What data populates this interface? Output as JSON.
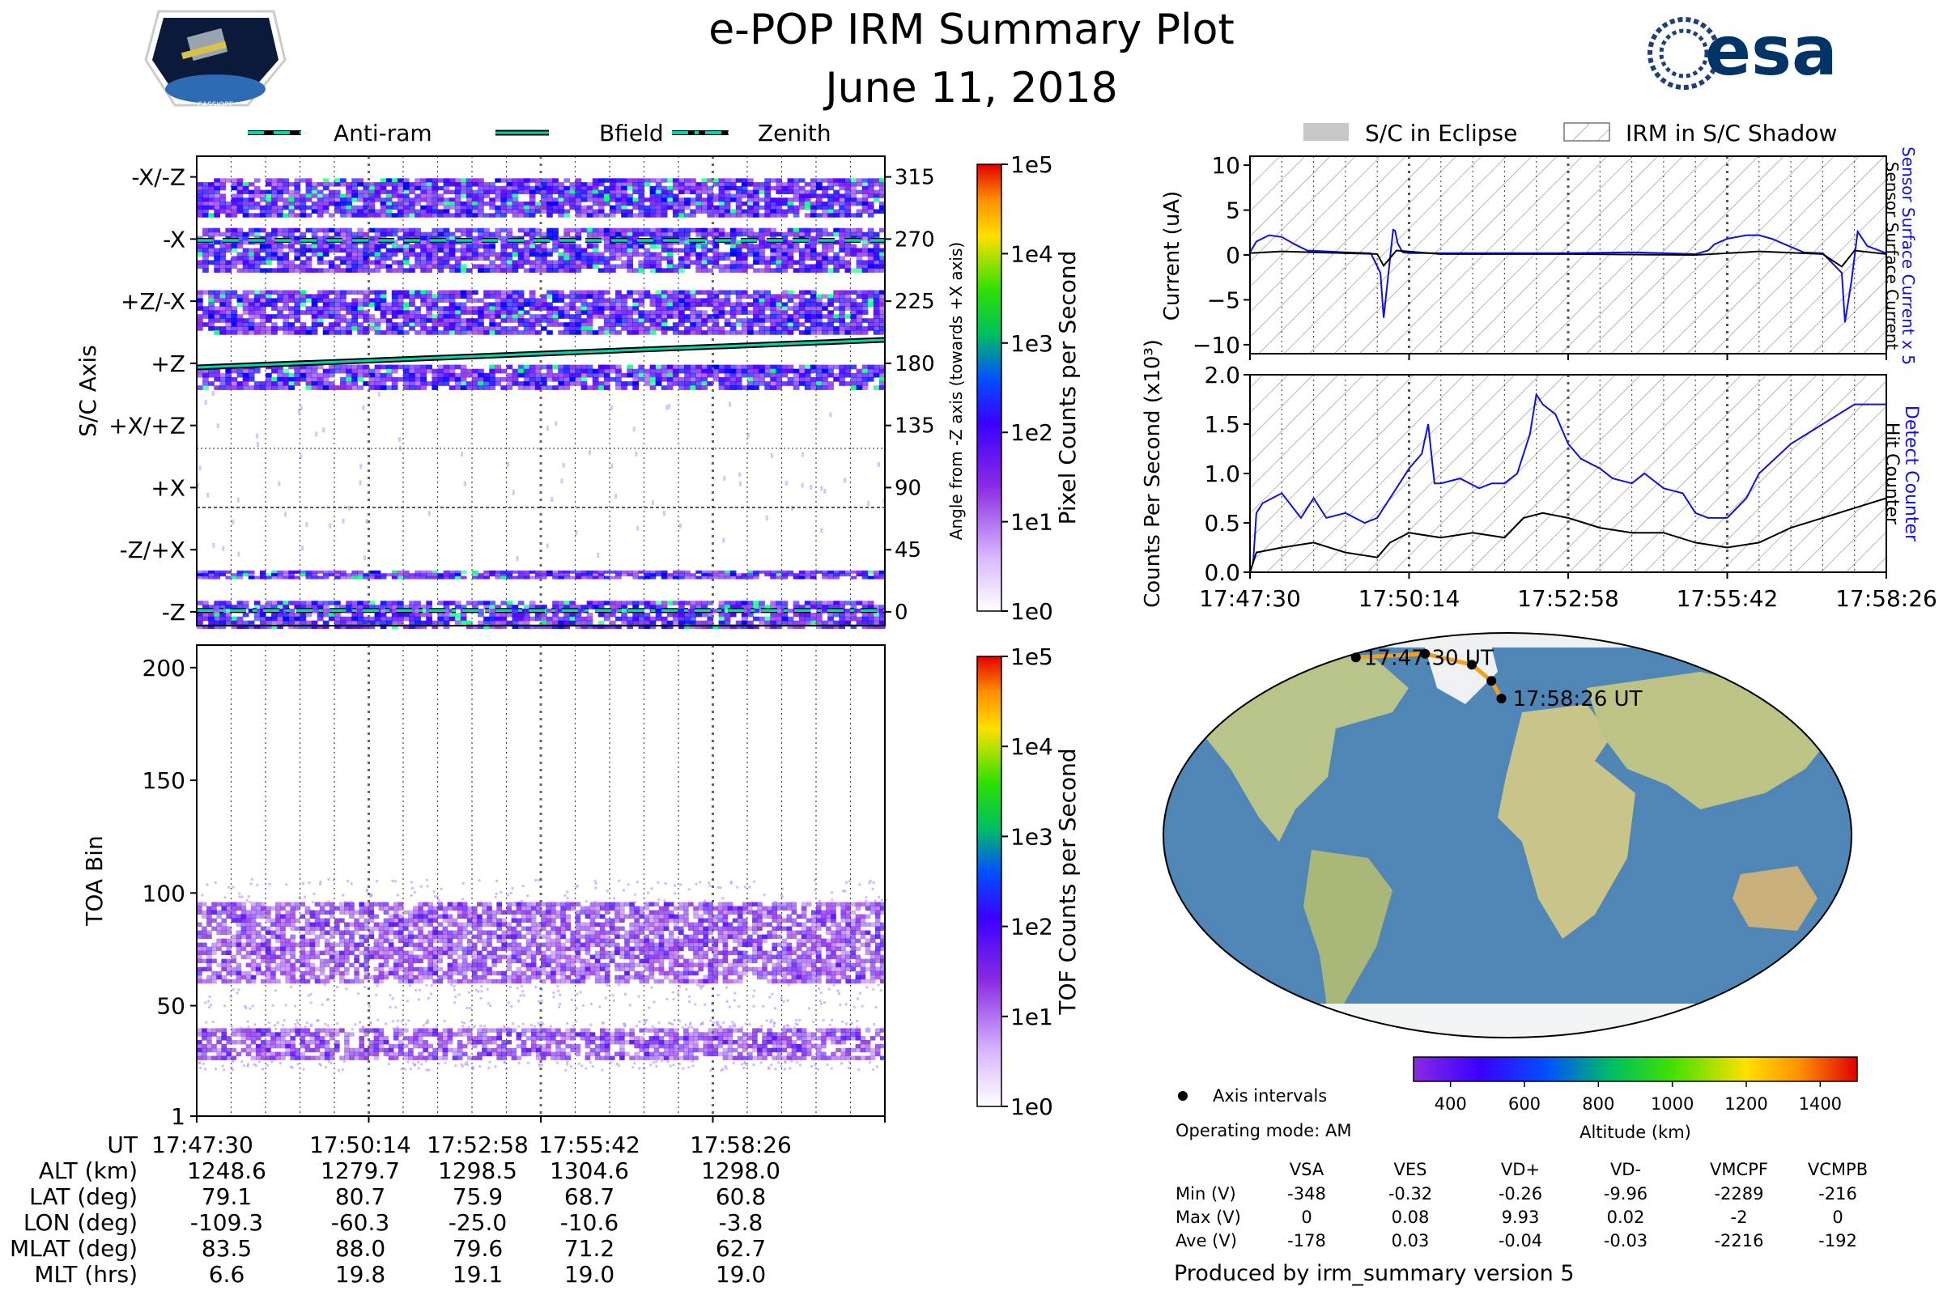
{
  "header": {
    "title": "e-POP IRM Summary Plot",
    "date": "June 11, 2018",
    "mission_logo_text": "CASSIOPE",
    "agency_logo_text": "esa"
  },
  "colors": {
    "bfield_line": "#00d5b0",
    "detect_blue": "#1010e0",
    "orbit_track": "#f2a01c",
    "ocean": "#4f86b5",
    "land": "#b9c48a"
  },
  "scale_colors": [
    "#8a2be2",
    "#4a00ff",
    "#0000ff",
    "#0080ff",
    "#00ff80",
    "#40ff00",
    "#ffff00",
    "#ffa500",
    "#ff2000"
  ],
  "legend_top": [
    {
      "label": "Anti-ram",
      "style": "dashed"
    },
    {
      "label": "Bfield",
      "style": "solid"
    },
    {
      "label": "Zenith",
      "style": "dashdot"
    }
  ],
  "legend_right": [
    {
      "label": "S/C in Eclipse",
      "style": "gray"
    },
    {
      "label": "IRM in S/C Shadow",
      "style": "hatch"
    }
  ],
  "time_ticks": [
    "17:47:30",
    "17:50:14",
    "17:52:58",
    "17:55:42",
    "17:58:26"
  ],
  "chart_data": [
    {
      "id": "pixel_counts",
      "type": "heatmap",
      "ylabel": "S/C Axis",
      "y_right_label": "Angle from -Z axis (towards +X axis)",
      "ylim": [
        -10,
        330
      ],
      "left_ticks": [
        {
          "label": "-X/-Z",
          "value": 315
        },
        {
          "label": "-X",
          "value": 270
        },
        {
          "label": "+Z/-X",
          "value": 225
        },
        {
          "label": "+Z",
          "value": 180
        },
        {
          "label": "+X/+Z",
          "value": 135
        },
        {
          "label": "+X",
          "value": 90
        },
        {
          "label": "-Z/+X",
          "value": 45
        },
        {
          "label": "-Z",
          "value": 0
        }
      ],
      "right_ticks": [
        "315",
        "270",
        "225",
        "180",
        "135",
        "90",
        "45",
        "0"
      ],
      "right_tick_values": [
        315,
        270,
        225,
        180,
        135,
        90,
        45,
        0
      ],
      "bands": [
        {
          "center": 300,
          "half_width": 14
        },
        {
          "center": 262,
          "half_width": 16
        },
        {
          "center": 217,
          "half_width": 16
        },
        {
          "center": 170,
          "half_width": 9
        },
        {
          "center": 27,
          "half_width": 3
        },
        {
          "center": -2,
          "half_width": 10
        }
      ],
      "bfield_line": {
        "start": 177,
        "end": 197
      },
      "antiram_angle": 269,
      "zenith_angle": 1,
      "colorbar_label": "Pixel Counts per Second",
      "colorbar_ticks": [
        "1e5",
        "1e4",
        "1e3",
        "1e2",
        "1e1",
        "1e0"
      ]
    },
    {
      "id": "toa",
      "type": "heatmap",
      "ylabel": "TOA Bin",
      "ylim": [
        1,
        210
      ],
      "y_ticks": [
        "200",
        "150",
        "100",
        "50",
        "1"
      ],
      "y_tick_values": [
        200,
        150,
        100,
        50,
        1
      ],
      "bands": [
        {
          "center": 78,
          "half_width": 18
        },
        {
          "center": 33,
          "half_width": 7
        }
      ],
      "colorbar_label": "TOF Counts per Second",
      "colorbar_ticks": [
        "1e5",
        "1e4",
        "1e3",
        "1e2",
        "1e1",
        "1e0"
      ]
    },
    {
      "id": "current",
      "type": "line",
      "ylabel": "Current (uA)",
      "ylim": [
        -11,
        11
      ],
      "y_ticks": [
        "10",
        "5",
        "0",
        "−5",
        "−10"
      ],
      "y_tick_values": [
        10,
        5,
        0,
        -5,
        -10
      ],
      "right_label_1": "Sensor Surface Current x 5",
      "right_label_2": "Sensor Surface Current",
      "series": [
        {
          "name": "Sensor Surface Current x 5",
          "color": "#1010e0",
          "x": [
            0,
            0.01,
            0.03,
            0.05,
            0.07,
            0.09,
            0.15,
            0.19,
            0.205,
            0.21,
            0.225,
            0.228,
            0.232,
            0.24,
            0.25,
            0.3,
            0.4,
            0.5,
            0.6,
            0.7,
            0.72,
            0.73,
            0.75,
            0.78,
            0.8,
            0.82,
            0.87,
            0.9,
            0.93,
            0.935,
            0.945,
            0.955,
            0.97,
            1.0
          ],
          "y": [
            0.3,
            1.5,
            2.2,
            2.0,
            1.2,
            0.5,
            0.3,
            0.2,
            -2,
            -7,
            2.8,
            2.7,
            1.3,
            0.3,
            0.2,
            0.2,
            0.2,
            0.2,
            0.3,
            0.1,
            0.5,
            1.2,
            1.8,
            2.2,
            2.2,
            1.8,
            0.3,
            0.2,
            -2,
            -7.5,
            -3,
            2.6,
            1,
            0.2
          ]
        },
        {
          "name": "Sensor Surface Current",
          "color": "#000000",
          "x": [
            0,
            0.05,
            0.1,
            0.2,
            0.21,
            0.23,
            0.3,
            0.5,
            0.7,
            0.8,
            0.9,
            0.93,
            0.95,
            1.0
          ],
          "y": [
            0.2,
            0.4,
            0.3,
            0.1,
            -1.2,
            0.5,
            0.1,
            0.1,
            0.0,
            0.4,
            0.1,
            -1.3,
            0.5,
            0.1
          ]
        }
      ]
    },
    {
      "id": "counts",
      "type": "line",
      "ylabel": "Counts Per Second (x10³)",
      "ylim": [
        0,
        2.0
      ],
      "y_ticks": [
        "2.0",
        "1.5",
        "1.0",
        "0.5",
        "0.0"
      ],
      "y_tick_values": [
        2.0,
        1.5,
        1.0,
        0.5,
        0.0
      ],
      "right_label_1": "Detect Counter",
      "right_label_2": "Hit Counter",
      "series": [
        {
          "name": "Detect Counter",
          "color": "#1010e0",
          "x": [
            0,
            0.005,
            0.01,
            0.02,
            0.05,
            0.08,
            0.1,
            0.12,
            0.15,
            0.18,
            0.2,
            0.22,
            0.25,
            0.27,
            0.28,
            0.29,
            0.3,
            0.33,
            0.36,
            0.38,
            0.4,
            0.42,
            0.44,
            0.45,
            0.46,
            0.48,
            0.5,
            0.52,
            0.55,
            0.57,
            0.6,
            0.62,
            0.65,
            0.68,
            0.7,
            0.72,
            0.75,
            0.78,
            0.8,
            0.85,
            0.9,
            0.95,
            1.0
          ],
          "y": [
            0.0,
            0.1,
            0.6,
            0.7,
            0.8,
            0.55,
            0.75,
            0.55,
            0.6,
            0.5,
            0.55,
            0.75,
            1.05,
            1.2,
            1.5,
            0.9,
            0.9,
            0.95,
            0.85,
            0.9,
            0.9,
            1.0,
            1.4,
            1.8,
            1.7,
            1.6,
            1.3,
            1.15,
            1.05,
            0.95,
            0.9,
            1.0,
            0.85,
            0.8,
            0.6,
            0.55,
            0.55,
            0.75,
            1.0,
            1.3,
            1.5,
            1.7,
            1.7
          ]
        },
        {
          "name": "Hit Counter",
          "color": "#000000",
          "x": [
            0,
            0.01,
            0.05,
            0.1,
            0.15,
            0.2,
            0.22,
            0.25,
            0.3,
            0.35,
            0.4,
            0.43,
            0.46,
            0.5,
            0.55,
            0.6,
            0.65,
            0.7,
            0.75,
            0.8,
            0.85,
            0.9,
            0.95,
            1.0
          ],
          "y": [
            0.0,
            0.2,
            0.25,
            0.3,
            0.2,
            0.15,
            0.3,
            0.4,
            0.35,
            0.4,
            0.35,
            0.55,
            0.6,
            0.55,
            0.45,
            0.4,
            0.4,
            0.3,
            0.25,
            0.3,
            0.45,
            0.55,
            0.65,
            0.75
          ]
        }
      ]
    },
    {
      "id": "orbit_map",
      "type": "scatter",
      "title": "",
      "track_lat": [
        79.1,
        80.7,
        75.9,
        68.7,
        60.8
      ],
      "track_lon": [
        -109.3,
        -60.3,
        -25.0,
        -10.6,
        -3.8
      ],
      "start_label": "17:47:30 UT",
      "end_label": "17:58:26 UT"
    }
  ],
  "altitude_colorbar": {
    "label": "Altitude (km)",
    "ticks": [
      "400",
      "600",
      "800",
      "1000",
      "1200",
      "1400"
    ],
    "tick_values": [
      400,
      600,
      800,
      1000,
      1200,
      1400
    ],
    "range": [
      300,
      1500
    ]
  },
  "axis_intervals_label": "Axis intervals",
  "operating_mode": "Operating mode: AM",
  "voltage_table": {
    "columns": [
      "",
      "VSA",
      "VES",
      "VD+",
      "VD-",
      "VMCPF",
      "VCMPB"
    ],
    "rows": [
      [
        "Min (V)",
        "-348",
        "-0.32",
        "-0.26",
        "-9.96",
        "-2289",
        "-216"
      ],
      [
        "Max (V)",
        "0",
        "0.08",
        "9.93",
        "0.02",
        "-2",
        "0"
      ],
      [
        "Ave (V)",
        "-178",
        "0.03",
        "-0.04",
        "-0.03",
        "-2216",
        "-192"
      ]
    ]
  },
  "ephemeris": {
    "labels": [
      "UT",
      "ALT (km)",
      "LAT (deg)",
      "LON (deg)",
      "MLAT (deg)",
      "MLT (hrs)"
    ],
    "columns": [
      [
        "17:47:30",
        "1248.6",
        "79.1",
        "-109.3",
        "83.5",
        "6.6"
      ],
      [
        "17:50:14",
        "1279.7",
        "80.7",
        "-60.3",
        "88.0",
        "19.8"
      ],
      [
        "17:52:58",
        "1298.5",
        "75.9",
        "-25.0",
        "79.6",
        "19.1"
      ],
      [
        "17:55:42",
        "1304.6",
        "68.7",
        "-10.6",
        "71.2",
        "19.0"
      ],
      [
        "17:58:26",
        "1298.0",
        "60.8",
        "-3.8",
        "62.7",
        "19.0"
      ]
    ]
  },
  "footer": "Produced by irm_summary version 5"
}
